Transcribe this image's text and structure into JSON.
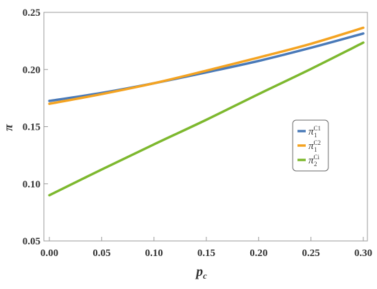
{
  "chart_data": {
    "type": "line",
    "title": "",
    "xlabel": "p",
    "xlabel_sub": "c",
    "ylabel": "π",
    "xlim": [
      0,
      0.3
    ],
    "ylim": [
      0.05,
      0.25
    ],
    "xticks": [
      "0.00",
      "0.05",
      "0.10",
      "0.15",
      "0.20",
      "0.25",
      "0.30"
    ],
    "xtick_values": [
      0,
      0.05,
      0.1,
      0.15,
      0.2,
      0.25,
      0.3
    ],
    "yticks": [
      "0.05",
      "0.10",
      "0.15",
      "0.20",
      "0.25"
    ],
    "ytick_values": [
      0.05,
      0.1,
      0.15,
      0.2,
      0.25
    ],
    "grid": false,
    "legend_position": "right",
    "x": [
      0,
      0.05,
      0.1,
      0.15,
      0.2,
      0.25,
      0.3
    ],
    "series": [
      {
        "name": "π",
        "sub": "1",
        "sup": "C1",
        "color": "#4a7ab8",
        "values": [
          0.1725,
          0.1795,
          0.188,
          0.1975,
          0.2075,
          0.219,
          0.2315
        ]
      },
      {
        "name": "π",
        "sub": "1",
        "sup": "C2",
        "color": "#f4a321",
        "values": [
          0.17,
          0.1785,
          0.188,
          0.199,
          0.2105,
          0.2225,
          0.2365
        ]
      },
      {
        "name": "π",
        "sub": "2",
        "sup": "Ci",
        "color": "#7db82e",
        "values": [
          0.09,
          0.1125,
          0.1345,
          0.156,
          0.1785,
          0.2005,
          0.2235
        ]
      }
    ]
  }
}
